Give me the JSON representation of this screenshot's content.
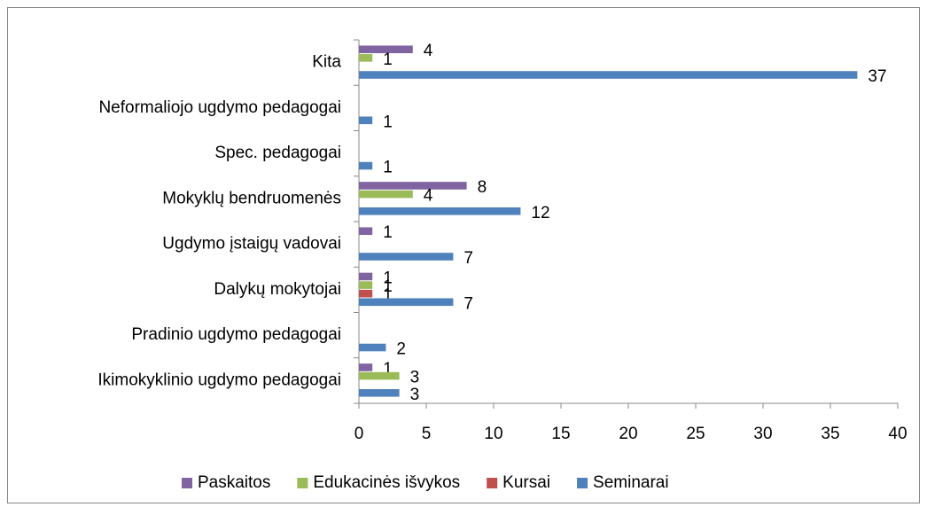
{
  "chart_data": {
    "type": "hbar",
    "categories": [
      "Ikimokyklinio ugdymo pedagogai",
      "Pradinio ugdymo pedagogai",
      "Dalykų mokytojai",
      "Ugdymo įstaigų vadovai",
      "Mokyklų bendruomenės",
      "Spec. pedagogai",
      "Neformaliojo ugdymo pedagogai",
      "Kita"
    ],
    "series": [
      {
        "name": "Paskaitos",
        "color": "#8064a2",
        "values": [
          1,
          null,
          1,
          1,
          8,
          null,
          null,
          4
        ]
      },
      {
        "name": "Edukacinės išvykos",
        "color": "#9bbb59",
        "values": [
          3,
          null,
          1,
          null,
          4,
          null,
          null,
          1
        ]
      },
      {
        "name": "Kursai",
        "color": "#c0504d",
        "values": [
          null,
          null,
          1,
          null,
          null,
          null,
          null,
          null
        ]
      },
      {
        "name": "Seminarai",
        "color": "#4f81bd",
        "values": [
          3,
          2,
          7,
          7,
          12,
          1,
          1,
          37
        ]
      }
    ],
    "xlim": [
      0,
      40
    ],
    "xticks": [
      0,
      5,
      10,
      15,
      20,
      25,
      30,
      35,
      40
    ],
    "grid": false,
    "legend": "bottom"
  }
}
